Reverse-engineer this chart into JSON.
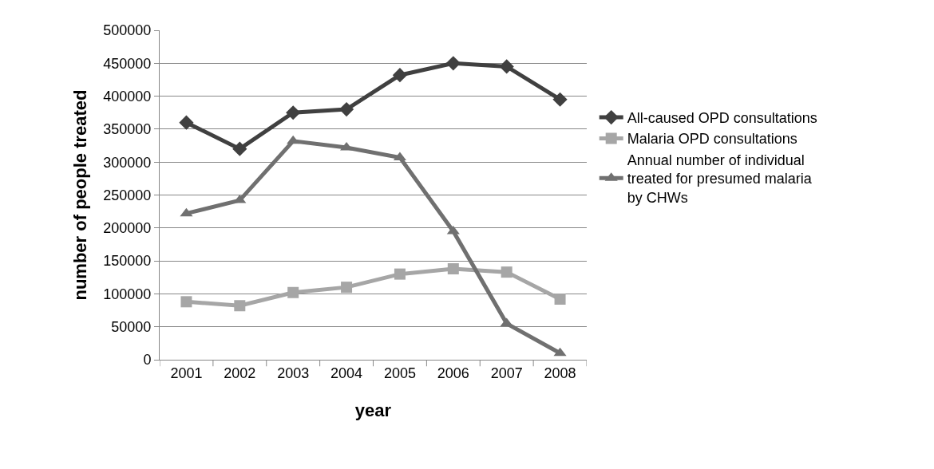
{
  "chart_data": {
    "type": "line",
    "xlabel": "year",
    "ylabel": "number of people treated",
    "categories": [
      "2001",
      "2002",
      "2003",
      "2004",
      "2005",
      "2006",
      "2007",
      "2008"
    ],
    "series": [
      {
        "name": "All-caused OPD consultations",
        "color": "#404040",
        "marker": "diamond",
        "values": [
          360000,
          320000,
          375000,
          380000,
          432000,
          450000,
          445000,
          395000
        ]
      },
      {
        "name": "Malaria OPD consultations",
        "color": "#a6a6a6",
        "marker": "square",
        "values": [
          88000,
          82000,
          102000,
          110000,
          130000,
          138000,
          133000,
          92000
        ]
      },
      {
        "name": "Annual number of individual treated for presumed malaria by CHWs",
        "color": "#707070",
        "marker": "triangle",
        "values": [
          222000,
          242000,
          332000,
          322000,
          307000,
          195000,
          55000,
          10000
        ]
      }
    ],
    "ylim": [
      0,
      500000
    ],
    "yticks": [
      0,
      50000,
      100000,
      150000,
      200000,
      250000,
      300000,
      350000,
      400000,
      450000,
      500000
    ],
    "grid": "y",
    "legend": "right",
    "line_style": "solid"
  }
}
